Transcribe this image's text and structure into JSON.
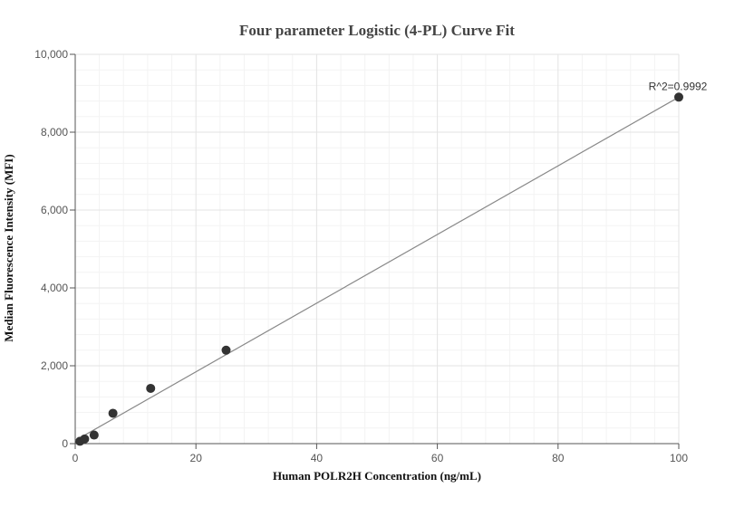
{
  "chart_data": {
    "type": "scatter",
    "title": "Four parameter Logistic (4-PL) Curve Fit",
    "xlabel": "Human POLR2H Concentration (ng/mL)",
    "ylabel": "Median Fluorescence Intensity (MFI)",
    "xlim": [
      0,
      100
    ],
    "ylim": [
      0,
      10000
    ],
    "x_ticks": [
      0,
      20,
      40,
      60,
      80,
      100
    ],
    "x_tick_labels": [
      "0",
      "20",
      "40",
      "60",
      "80",
      "100"
    ],
    "y_ticks": [
      0,
      2000,
      4000,
      6000,
      8000,
      10000
    ],
    "y_tick_labels": [
      "0",
      "2,000",
      "4,000",
      "6,000",
      "8,000",
      "10,000"
    ],
    "grid": true,
    "points": [
      {
        "x": 0.78,
        "y": 60
      },
      {
        "x": 1.56,
        "y": 120
      },
      {
        "x": 3.13,
        "y": 220
      },
      {
        "x": 6.25,
        "y": 780
      },
      {
        "x": 12.5,
        "y": 1420
      },
      {
        "x": 25,
        "y": 2400
      },
      {
        "x": 100,
        "y": 8900
      }
    ],
    "fit_curve": [
      {
        "x": 0,
        "y": 80
      },
      {
        "x": 100,
        "y": 8900
      }
    ],
    "annotation": "R^2=0.9992"
  }
}
